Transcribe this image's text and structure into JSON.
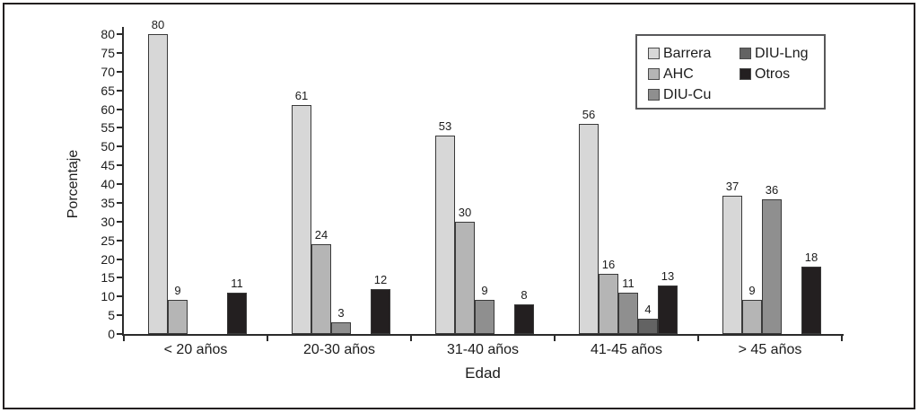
{
  "figure": {
    "background": "#ffffff",
    "frame_color": "#231f20",
    "axis_color": "#2b2b2b",
    "text_color": "#1c1c1c"
  },
  "chart_data": {
    "type": "bar",
    "title": "",
    "xlabel": "Edad",
    "ylabel": "Porcentaje",
    "ylim": [
      0,
      80
    ],
    "y_tick_step": 5,
    "grid": false,
    "legend_position": "top-right",
    "bar_value_labels": true,
    "categories": [
      "< 20 años",
      "20-30 años",
      "31-40 años",
      "41-45 años",
      "> 45 años"
    ],
    "series": [
      {
        "name": "Barrera",
        "color": "#d7d7d7",
        "values": [
          80,
          61,
          53,
          56,
          37
        ]
      },
      {
        "name": "AHC",
        "color": "#b5b5b5",
        "values": [
          9,
          24,
          30,
          16,
          9
        ]
      },
      {
        "name": "DIU-Cu",
        "color": "#8f8f8f",
        "values": [
          null,
          3,
          9,
          11,
          36
        ]
      },
      {
        "name": "DIU-Lng",
        "color": "#636363",
        "values": [
          null,
          null,
          null,
          4,
          null
        ]
      },
      {
        "name": "Otros",
        "color": "#231f20",
        "values": [
          11,
          12,
          8,
          13,
          18
        ]
      }
    ]
  }
}
